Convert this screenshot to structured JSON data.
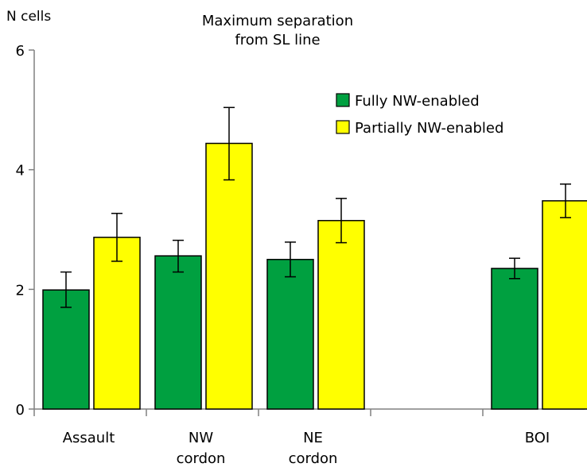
{
  "chart_data": {
    "type": "bar",
    "title": "Maximum separation\nfrom SL line",
    "ylabel": "N cells",
    "xlabel": "",
    "ylim": [
      0,
      6
    ],
    "yticks": [
      0,
      2,
      4,
      6
    ],
    "grid": false,
    "legend_position": "top-right",
    "categories": [
      "Assault",
      "NW\ncordon",
      "NE\ncordon",
      "",
      "BOI"
    ],
    "series": [
      {
        "name": "Fully NW-enabled",
        "color": "#00a040",
        "values": [
          1.99,
          2.56,
          2.5,
          null,
          2.35
        ],
        "err_low": [
          1.7,
          2.29,
          2.21,
          null,
          2.18
        ],
        "err_high": [
          2.29,
          2.82,
          2.79,
          null,
          2.52
        ]
      },
      {
        "name": "Partially NW-enabled",
        "color": "#ffff00",
        "values": [
          2.87,
          4.44,
          3.15,
          null,
          3.48
        ],
        "err_low": [
          2.47,
          3.83,
          2.78,
          null,
          3.2
        ],
        "err_high": [
          3.27,
          5.04,
          3.52,
          null,
          3.76
        ]
      }
    ]
  }
}
